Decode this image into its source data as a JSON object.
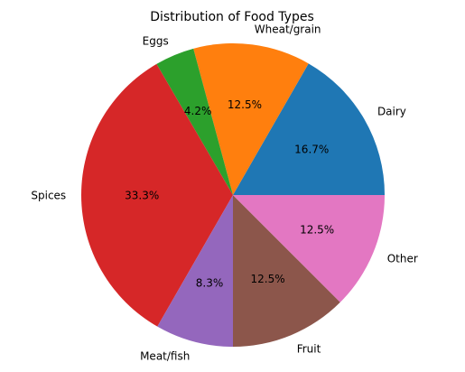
{
  "chart_data": {
    "type": "pie",
    "title": "Distribution of Food Types",
    "slices": [
      {
        "label": "Dairy",
        "value": 16.7,
        "pct_label": "16.7%",
        "color": "#1f77b4"
      },
      {
        "label": "Wheat/grain",
        "value": 12.5,
        "pct_label": "12.5%",
        "color": "#ff7f0e"
      },
      {
        "label": "Eggs",
        "value": 4.2,
        "pct_label": "4.2%",
        "color": "#2ca02c"
      },
      {
        "label": "Spices",
        "value": 33.3,
        "pct_label": "33.3%",
        "color": "#d62728"
      },
      {
        "label": "Meat/fish",
        "value": 8.3,
        "pct_label": "8.3%",
        "color": "#9467bd"
      },
      {
        "label": "Fruit",
        "value": 12.5,
        "pct_label": "12.5%",
        "color": "#8c564b"
      },
      {
        "label": "Other",
        "value": 12.5,
        "pct_label": "12.5%",
        "color": "#e377c2"
      }
    ],
    "start_angle_deg": 0,
    "direction": "counterclockwise"
  }
}
